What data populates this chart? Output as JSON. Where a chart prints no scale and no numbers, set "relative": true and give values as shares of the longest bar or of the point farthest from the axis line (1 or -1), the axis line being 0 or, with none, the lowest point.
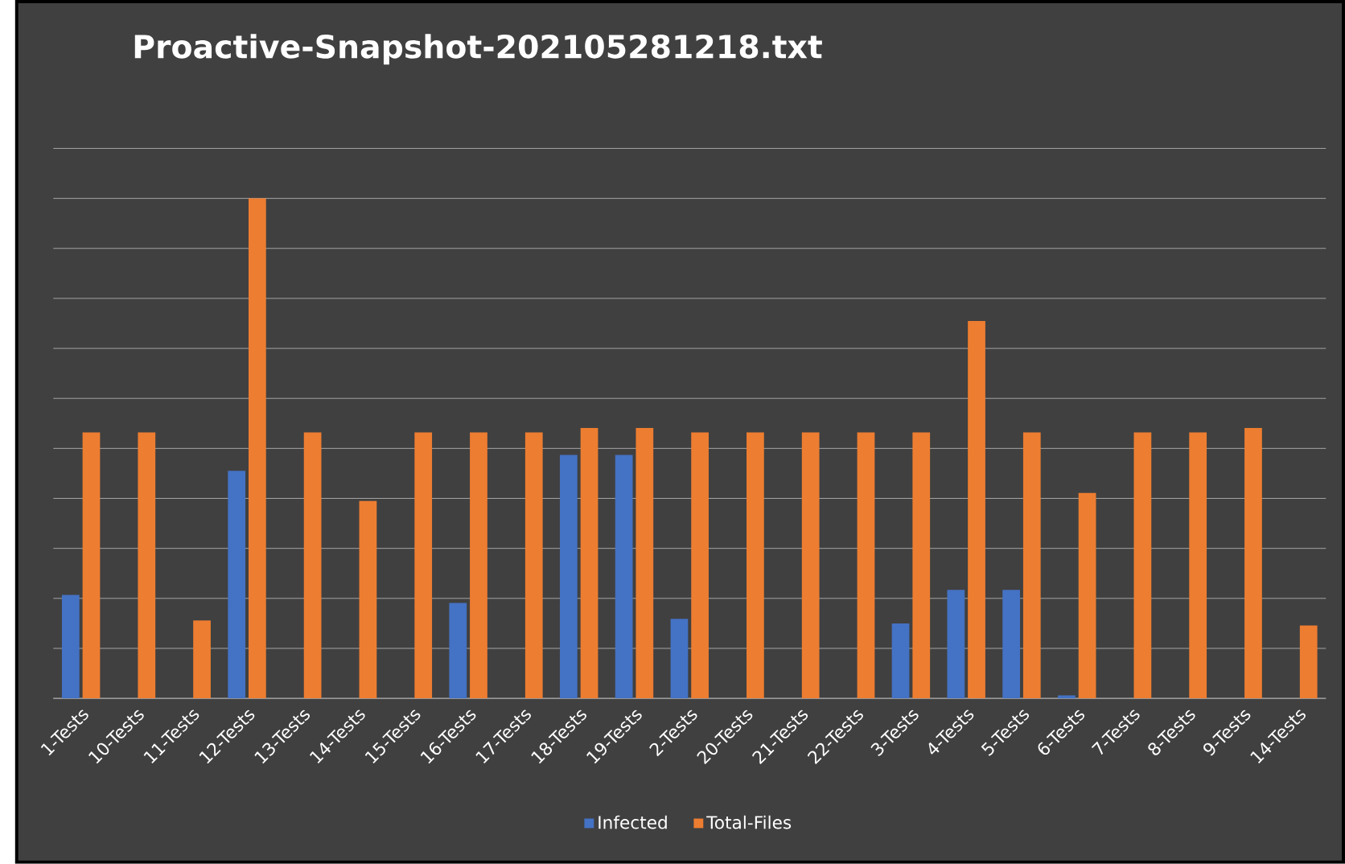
{
  "chart_data": {
    "type": "bar",
    "title": "Proactive-Snapshot-202105281218.txt",
    "categories": [
      "1-Tests",
      "10-Tests",
      "11-Tests",
      "12-Tests",
      "13-Tests",
      "14-Tests",
      "15-Tests",
      "16-Tests",
      "17-Tests",
      "18-Tests",
      "19-Tests",
      "2-Tests",
      "20-Tests",
      "21-Tests",
      "22-Tests",
      "3-Tests",
      "4-Tests",
      "5-Tests",
      "6-Tests",
      "7-Tests",
      "8-Tests",
      "9-Tests",
      "14-Tests"
    ],
    "series": [
      {
        "name": "Infected",
        "color": "#4472c4",
        "values": [
          0.207,
          0,
          0,
          0.455,
          0,
          0,
          0,
          0.191,
          0,
          0.487,
          0.487,
          0.159,
          0,
          0,
          0,
          0.15,
          0.217,
          0.217,
          0.006,
          0,
          0,
          0,
          0
        ]
      },
      {
        "name": "Total-Files",
        "color": "#ed7d31",
        "values": [
          0.532,
          0.532,
          0.156,
          1,
          0.532,
          0.395,
          0.532,
          0.532,
          0.532,
          0.541,
          0.541,
          0.532,
          0.532,
          0.532,
          0.532,
          0.532,
          0.755,
          0.532,
          0.411,
          0.532,
          0.532,
          0.541,
          0.146
        ]
      }
    ],
    "relative": true,
    "grid": "y",
    "legend": "bottom"
  }
}
